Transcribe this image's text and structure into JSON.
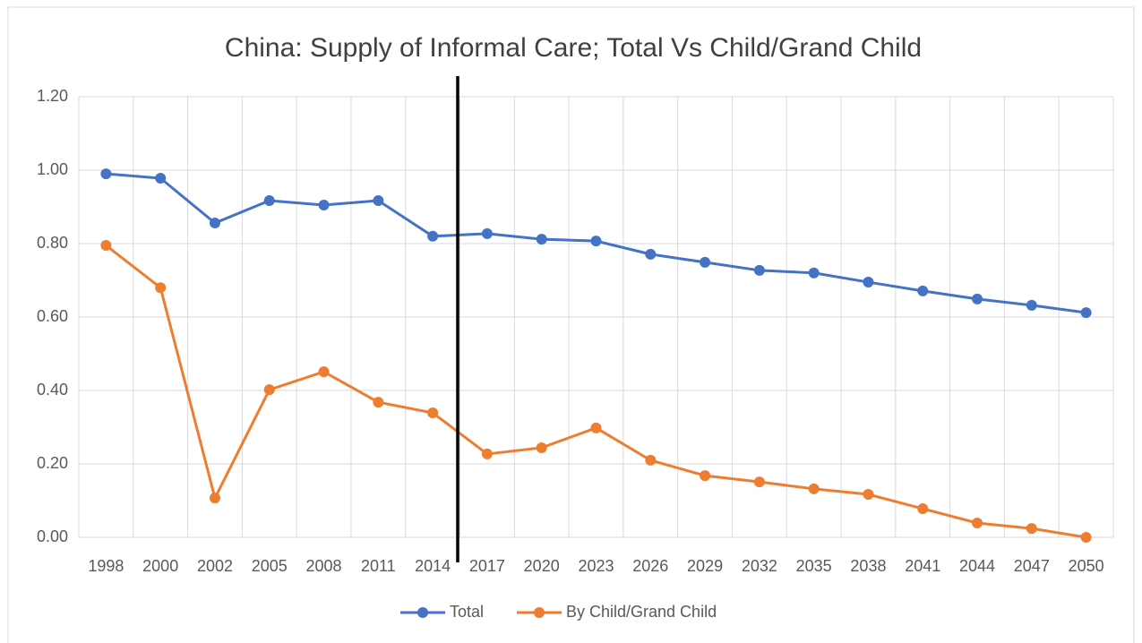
{
  "chart_data": {
    "type": "line",
    "title": "China: Supply of Informal Care; Total Vs Child/Grand Child",
    "categories": [
      "1998",
      "2000",
      "2002",
      "2005",
      "2008",
      "2011",
      "2014",
      "2017",
      "2020",
      "2023",
      "2026",
      "2029",
      "2032",
      "2035",
      "2038",
      "2041",
      "2044",
      "2047",
      "2050"
    ],
    "series": [
      {
        "name": "Total",
        "color": "#4472c4",
        "values": [
          0.99,
          0.978,
          0.856,
          0.917,
          0.905,
          0.917,
          0.82,
          0.827,
          0.812,
          0.807,
          0.771,
          0.749,
          0.727,
          0.72,
          0.695,
          0.671,
          0.649,
          0.632,
          0.612
        ]
      },
      {
        "name": "By Child/Grand Child",
        "color": "#ed7d31",
        "values": [
          0.795,
          0.68,
          0.107,
          0.402,
          0.451,
          0.368,
          0.339,
          0.227,
          0.244,
          0.298,
          0.21,
          0.168,
          0.151,
          0.132,
          0.117,
          0.078,
          0.039,
          0.024,
          0
        ]
      }
    ],
    "ylim": [
      0,
      1.2
    ],
    "yticks": [
      {
        "value": 0,
        "label": "0.00"
      },
      {
        "value": 0.2,
        "label": "0.20"
      },
      {
        "value": 0.4,
        "label": "0.40"
      },
      {
        "value": 0.6,
        "label": "0.60"
      },
      {
        "value": 0.8,
        "label": "0.80"
      },
      {
        "value": 1.0,
        "label": "1.00"
      },
      {
        "value": 1.2,
        "label": "1.20"
      }
    ],
    "grid": true,
    "legend": "bottom"
  }
}
